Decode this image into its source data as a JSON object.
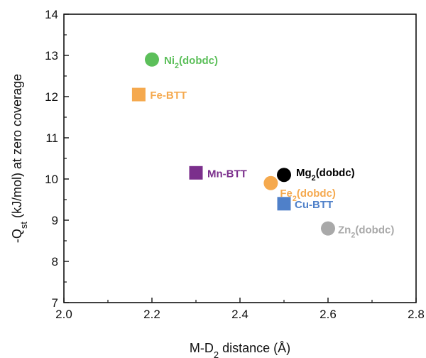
{
  "chart_data": {
    "type": "scatter",
    "xlabel": "M-D2 distance (Å)",
    "ylabel": "-Qst (kJ/mol) at zero coverage",
    "xlim": [
      2.0,
      2.8
    ],
    "ylim": [
      7,
      14
    ],
    "x_ticks": [
      "2.0",
      "2.2",
      "2.4",
      "2.6",
      "2.8"
    ],
    "y_ticks": [
      "7",
      "8",
      "9",
      "10",
      "11",
      "12",
      "13",
      "14"
    ],
    "grid": false,
    "legend": "none",
    "points": [
      {
        "label": "Ni2(dobdc)",
        "x": 2.2,
        "y": 12.9,
        "marker": "circle",
        "color": "#5cbf5a"
      },
      {
        "label": "Fe-BTT",
        "x": 2.17,
        "y": 12.05,
        "marker": "square",
        "color": "#f5a94e"
      },
      {
        "label": "Mn-BTT",
        "x": 2.3,
        "y": 10.15,
        "marker": "square",
        "color": "#7b2f8c"
      },
      {
        "label": "Mg2(dobdc)",
        "x": 2.5,
        "y": 10.1,
        "marker": "circle",
        "color": "#000000"
      },
      {
        "label": "Fe2(dobdc)",
        "x": 2.47,
        "y": 9.9,
        "marker": "circle",
        "color": "#f5a94e"
      },
      {
        "label": "Cu-BTT",
        "x": 2.5,
        "y": 9.4,
        "marker": "square",
        "color": "#4f80c9"
      },
      {
        "label": "Zn2(dobdc)",
        "x": 2.6,
        "y": 8.8,
        "marker": "circle",
        "color": "#a9a9a9"
      }
    ]
  }
}
